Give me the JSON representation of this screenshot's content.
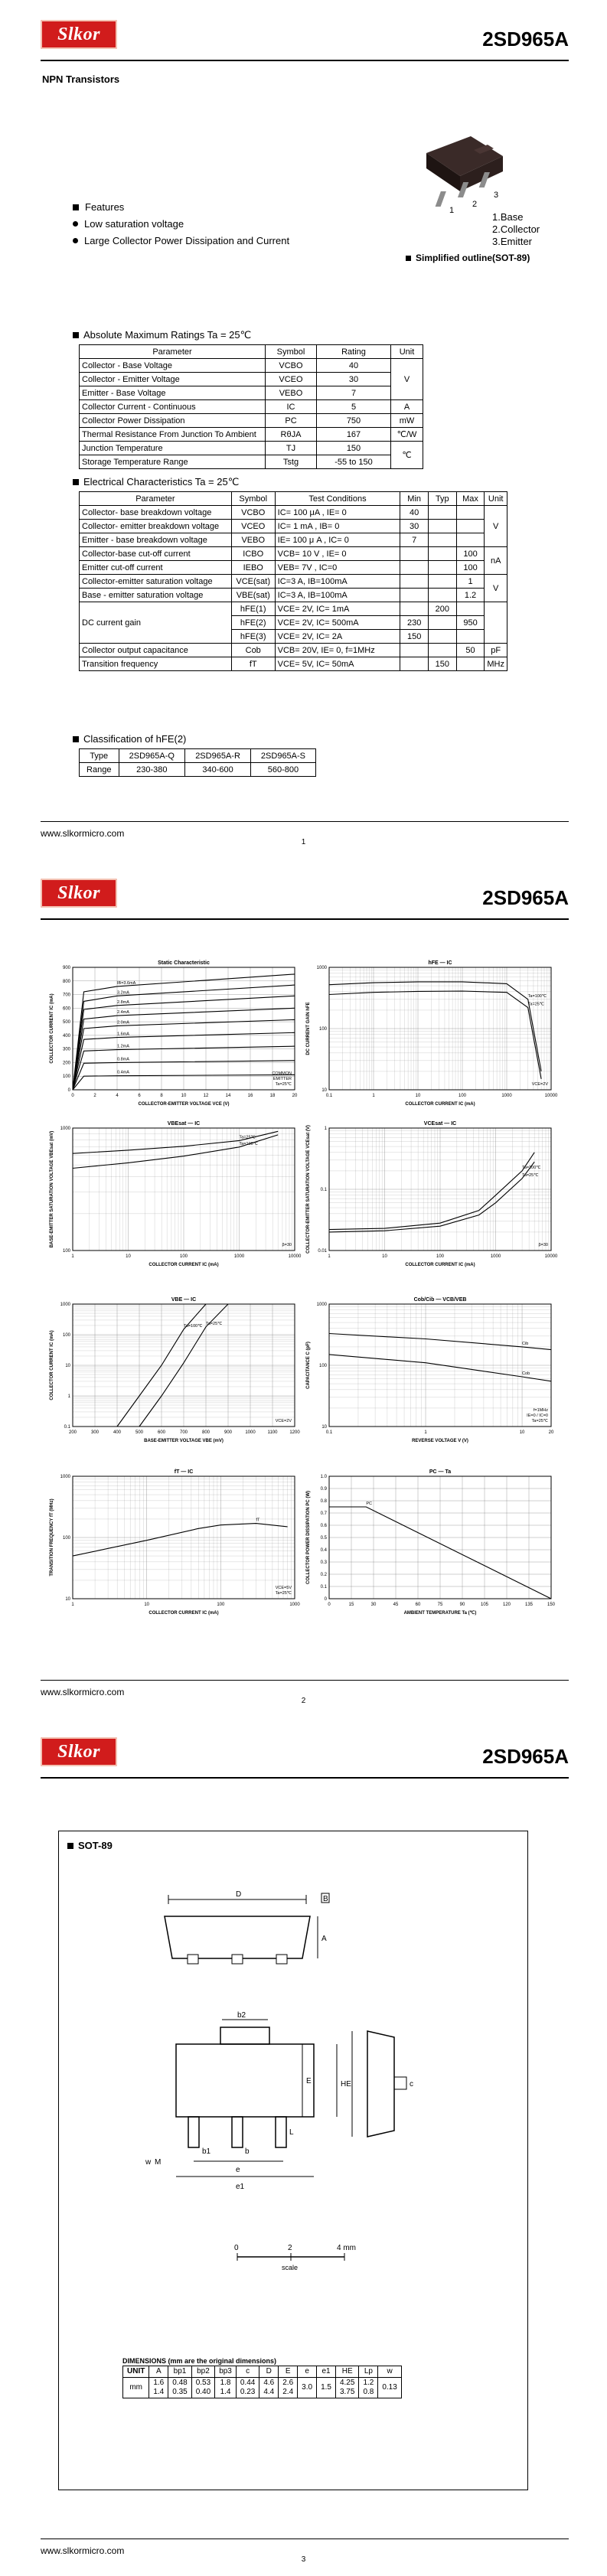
{
  "header": {
    "logo_text": "Slkor",
    "part_number": "2SD965A"
  },
  "footer": {
    "url": "www.slkormicro.com",
    "page_numbers": [
      "1",
      "2",
      "3"
    ]
  },
  "page1": {
    "subtitle": "NPN Transistors",
    "features": {
      "title": "Features",
      "items": [
        "Low saturation voltage",
        "Large Collector Power Dissipation and Current"
      ]
    },
    "pin_config": [
      "1.Base",
      "2.Collector",
      "3.Emitter"
    ],
    "pin_numbers": [
      "1",
      "2",
      "3"
    ],
    "outline_label": "Simplified outline(SOT-89)",
    "abs_max": {
      "title": "Absolute Maximum Ratings Ta = 25℃",
      "headers": [
        "Parameter",
        "Symbol",
        "Rating",
        "Unit"
      ],
      "rows": [
        [
          "Collector - Base Voltage",
          "VCBO",
          "40",
          "V"
        ],
        [
          "Collector - Emitter Voltage",
          "VCEO",
          "30",
          ""
        ],
        [
          "Emitter - Base Voltage",
          "VEBO",
          "7",
          ""
        ],
        [
          "Collector Current - Continuous",
          "IC",
          "5",
          "A"
        ],
        [
          "Collector Power Dissipation",
          "PC",
          "750",
          "mW"
        ],
        [
          "Thermal Resistance From Junction To Ambient",
          "RθJA",
          "167",
          "℃/W"
        ],
        [
          "Junction Temperature",
          "TJ",
          "150",
          "℃"
        ],
        [
          "Storage Temperature Range",
          "Tstg",
          "-55 to 150",
          ""
        ]
      ]
    },
    "elec": {
      "title": "Electrical Characteristics Ta = 25℃",
      "headers": [
        "Parameter",
        "Symbol",
        "Test Conditions",
        "Min",
        "Typ",
        "Max",
        "Unit"
      ],
      "rows": [
        [
          "Collector- base breakdown voltage",
          "VCBO",
          "IC= 100 μA , IE= 0",
          "40",
          "",
          "",
          "V"
        ],
        [
          "Collector- emitter breakdown voltage",
          "VCEO",
          "IC= 1 mA , IB= 0",
          "30",
          "",
          "",
          ""
        ],
        [
          "Emitter - base breakdown voltage",
          "VEBO",
          "IE= 100 μ A , IC= 0",
          "7",
          "",
          "",
          ""
        ],
        [
          "Collector-base cut-off current",
          "ICBO",
          "VCB= 10 V , IE= 0",
          "",
          "",
          "100",
          "nA"
        ],
        [
          "Emitter cut-off current",
          "IEBO",
          "VEB= 7V , IC=0",
          "",
          "",
          "100",
          ""
        ],
        [
          "Collector-emitter saturation voltage",
          "VCE(sat)",
          "IC=3 A, IB=100mA",
          "",
          "",
          "1",
          "V"
        ],
        [
          "Base - emitter saturation voltage",
          "VBE(sat)",
          "IC=3 A, IB=100mA",
          "",
          "",
          "1.2",
          ""
        ],
        [
          "DC current gain",
          "hFE(1)",
          "VCE= 2V, IC= 1mA",
          "",
          "200",
          "",
          ""
        ],
        [
          "",
          "hFE(2)",
          "VCE= 2V, IC= 500mA",
          "230",
          "",
          "950",
          ""
        ],
        [
          "",
          "hFE(3)",
          "VCE= 2V, IC= 2A",
          "150",
          "",
          "",
          ""
        ],
        [
          "Collector output capacitance",
          "Cob",
          "VCB= 20V, IE= 0, f=1MHz",
          "",
          "",
          "50",
          "pF"
        ],
        [
          "Transition frequency",
          "fT",
          "VCE= 5V, IC= 50mA",
          "",
          "150",
          "",
          "MHz"
        ]
      ]
    },
    "classification": {
      "title": "Classification of hFE(2)",
      "headers": [
        "Type",
        "2SD965A-Q",
        "2SD965A-R",
        "2SD965A-S"
      ],
      "row": [
        "Range",
        "230-380",
        "340-600",
        "560-800"
      ]
    }
  },
  "page2": {
    "chart_data": [
      {
        "type": "line",
        "title": "Static Characteristic",
        "xlabel": "COLLECTOR-EMITTER VOLTAGE  VCE  (V)",
        "ylabel": "COLLECTOR CURRENT  IC  (mA)",
        "annotation": [
          "COMMON",
          "EMITTER",
          "Ta=25℃"
        ],
        "xlim": [
          0,
          20
        ],
        "ylim": [
          0,
          900
        ],
        "x_ticks": [
          "0",
          "2",
          "4",
          "6",
          "8",
          "10",
          "12",
          "14",
          "16",
          "18",
          "20"
        ],
        "y_ticks": [
          "0",
          "100",
          "200",
          "300",
          "400",
          "500",
          "600",
          "700",
          "800",
          "900"
        ],
        "series": [
          {
            "name": "IB=3.6mA",
            "x": [
              0,
              1,
              4,
              20
            ],
            "values": [
              0,
              720,
              760,
              850
            ]
          },
          {
            "name": "3.2mA",
            "x": [
              0,
              1,
              4,
              20
            ],
            "values": [
              0,
              650,
              690,
              770
            ]
          },
          {
            "name": "2.8mA",
            "x": [
              0,
              1,
              4,
              20
            ],
            "values": [
              0,
              590,
              620,
              690
            ]
          },
          {
            "name": "2.4mA",
            "x": [
              0,
              1,
              4,
              20
            ],
            "values": [
              0,
              520,
              545,
              600
            ]
          },
          {
            "name": "2.0mA",
            "x": [
              0,
              1,
              4,
              20
            ],
            "values": [
              0,
              450,
              470,
              515
            ]
          },
          {
            "name": "1.6mA",
            "x": [
              0,
              1,
              4,
              20
            ],
            "values": [
              0,
              370,
              385,
              420
            ]
          },
          {
            "name": "1.2mA",
            "x": [
              0,
              1,
              4,
              20
            ],
            "values": [
              0,
              285,
              295,
              320
            ]
          },
          {
            "name": "0.8mA",
            "x": [
              0,
              1,
              4,
              20
            ],
            "values": [
              0,
              195,
              200,
              215
            ]
          },
          {
            "name": "0.4mA",
            "x": [
              0,
              1,
              4,
              20
            ],
            "values": [
              0,
              100,
              103,
              110
            ]
          }
        ]
      },
      {
        "type": "line",
        "title": "hFE — IC",
        "xlabel": "COLLECTOR CURRENT  IC  (mA)",
        "ylabel": "DC CURRENT GAIN  hFE",
        "x_scale": "log",
        "y_scale": "log",
        "xlim": [
          0.1,
          10000
        ],
        "ylim": [
          10,
          1000
        ],
        "note": "VCE=2V",
        "x_ticks": [
          "0.1",
          "1",
          "10",
          "100",
          "1000",
          "10000"
        ],
        "y_ticks": [
          "10",
          "100",
          "1000"
        ],
        "series": [
          {
            "name": "Ta=100℃",
            "x": [
              0.1,
              1,
              10,
              100,
              1000,
              3000,
              6000
            ],
            "values": [
              520,
              560,
              580,
              580,
              540,
              300,
              20
            ]
          },
          {
            "name": "Ta=25℃",
            "x": [
              0.1,
              1,
              10,
              100,
              1000,
              3000,
              6000
            ],
            "values": [
              360,
              390,
              405,
              410,
              390,
              220,
              15
            ]
          }
        ]
      },
      {
        "type": "line",
        "title": "VBEsat — IC",
        "xlabel": "COLLECTOR CURRENT  IC  (mA)",
        "ylabel": "BASE-EMITTER SATURATION VOLTAGE  VBEsat  (mV)",
        "x_scale": "log",
        "y_scale": "log",
        "xlim": [
          1,
          10000
        ],
        "ylim": [
          100,
          1000
        ],
        "note": "β=30",
        "x_ticks": [
          "1",
          "10",
          "100",
          "1000",
          "10000"
        ],
        "y_ticks": [
          "100",
          "1000"
        ],
        "series": [
          {
            "name": "Ta=25℃",
            "x": [
              1,
              10,
              100,
              1000,
              5000
            ],
            "values": [
              620,
              660,
              710,
              790,
              940
            ]
          },
          {
            "name": "Ta=100℃",
            "x": [
              1,
              10,
              100,
              1000,
              5000
            ],
            "values": [
              470,
              520,
              590,
              700,
              880
            ]
          }
        ]
      },
      {
        "type": "line",
        "title": "VCEsat — IC",
        "xlabel": "COLLECTOR CURRENT  IC  (mA)",
        "ylabel": "COLLECTOR-EMITTER SATURATION VOLTAGE  VCEsat  (V)",
        "x_scale": "log",
        "y_scale": "log",
        "xlim": [
          1,
          10000
        ],
        "ylim": [
          0.01,
          1
        ],
        "note": "β=30",
        "x_ticks": [
          "1",
          "10",
          "100",
          "1000",
          "10000"
        ],
        "y_ticks": [
          "0.01",
          "0.1",
          "1"
        ],
        "series": [
          {
            "name": "Ta=100℃",
            "x": [
              1,
              10,
              100,
              500,
              1000,
              3000,
              5000
            ],
            "values": [
              0.022,
              0.023,
              0.028,
              0.045,
              0.08,
              0.2,
              0.4
            ]
          },
          {
            "name": "Ta=25℃",
            "x": [
              1,
              10,
              100,
              500,
              1000,
              3000,
              5000
            ],
            "values": [
              0.02,
              0.021,
              0.025,
              0.038,
              0.06,
              0.15,
              0.28
            ]
          }
        ]
      },
      {
        "type": "line",
        "title": "VBE — IC",
        "xlabel": "BASE-EMITTER VOLTAGE  VBE  (mV)",
        "ylabel": "COLLECTOR CURRENT  IC  (mA)",
        "y_scale": "log",
        "xlim": [
          200,
          1200
        ],
        "ylim": [
          0.1,
          1000
        ],
        "note": "VCE=2V",
        "x_ticks": [
          "200",
          "300",
          "400",
          "500",
          "600",
          "700",
          "800",
          "900",
          "1000",
          "1100",
          "1200"
        ],
        "y_ticks": [
          "0.1",
          "1",
          "10",
          "100",
          "1000"
        ],
        "series": [
          {
            "name": "Ta=100℃",
            "x": [
              400,
              500,
              600,
              700,
              800
            ],
            "values": [
              0.1,
              1,
              10,
              150,
              1000
            ]
          },
          {
            "name": "Ta=25℃",
            "x": [
              500,
              600,
              700,
              800,
              900
            ],
            "values": [
              0.1,
              1,
              12,
              180,
              1000
            ]
          }
        ]
      },
      {
        "type": "line",
        "title": "Cob/Cib — VCB/VEB",
        "xlabel": "REVERSE VOLTAGE  V  (V)",
        "ylabel": "CAPACITANCE  C  (pF)",
        "x_scale": "log",
        "y_scale": "log",
        "xlim": [
          0.1,
          20
        ],
        "ylim": [
          10,
          1000
        ],
        "note": [
          "f=1MHz",
          "IE=0 / IC=0",
          "Ta=25℃"
        ],
        "x_ticks": [
          "0.1",
          "1",
          "10",
          "20"
        ],
        "y_ticks": [
          "10",
          "100",
          "1000"
        ],
        "series": [
          {
            "name": "Cib",
            "x": [
              0.1,
              1,
              10,
              20
            ],
            "values": [
              330,
              270,
              200,
              180
            ]
          },
          {
            "name": "Cob",
            "x": [
              0.1,
              1,
              10,
              20
            ],
            "values": [
              150,
              110,
              65,
              55
            ]
          }
        ]
      },
      {
        "type": "line",
        "title": "fT — IC",
        "xlabel": "COLLECTOR CURRENT  IC  (mA)",
        "ylabel": "TRANSITION FREQUENCY  fT  (MHz)",
        "x_scale": "log",
        "y_scale": "log",
        "xlim": [
          1,
          1000
        ],
        "ylim": [
          10,
          1000
        ],
        "note": [
          "VCE=5V",
          "Ta=25℃"
        ],
        "x_ticks": [
          "1",
          "10",
          "100",
          "1000"
        ],
        "y_ticks": [
          "10",
          "100",
          "1000"
        ],
        "series": [
          {
            "name": "fT",
            "x": [
              1,
              10,
              50,
              100,
              300,
              800
            ],
            "values": [
              50,
              90,
              140,
              160,
              170,
              150
            ]
          }
        ]
      },
      {
        "type": "line",
        "title": "PC — Ta",
        "xlabel": "AMBIENT TEMPERATURE  Ta  (℃)",
        "ylabel": "COLLECTOR POWER DISSIPATION  PC  (W)",
        "xlim": [
          0,
          150
        ],
        "ylim": [
          0,
          1.0
        ],
        "x_ticks": [
          "0",
          "15",
          "30",
          "45",
          "60",
          "75",
          "90",
          "105",
          "120",
          "135",
          "150"
        ],
        "y_ticks": [
          "0",
          "0.1",
          "0.2",
          "0.3",
          "0.4",
          "0.5",
          "0.6",
          "0.7",
          "0.8",
          "0.9",
          "1.0"
        ],
        "series": [
          {
            "name": "PC",
            "x": [
              0,
              25,
              150
            ],
            "values": [
              0.75,
              0.75,
              0
            ]
          }
        ]
      }
    ]
  },
  "page3": {
    "title": "SOT-89",
    "letter_labels": [
      "D",
      "B",
      "A",
      "b2",
      "E",
      "L",
      "c",
      "HE",
      "b1",
      "b",
      "e",
      "e1",
      "w",
      "M"
    ],
    "scale_labels": [
      "0",
      "2",
      "4 mm"
    ],
    "scale_word": "scale",
    "dims_title": "DIMENSIONS (mm are the original dimensions)",
    "dims_headers": [
      "UNIT",
      "A",
      "bp1",
      "bp2",
      "bp3",
      "c",
      "D",
      "E",
      "e",
      "e1",
      "HE",
      "Lp",
      "w"
    ],
    "dims_unit": "mm",
    "dims_max": [
      "1.6",
      "0.48",
      "0.53",
      "1.8",
      "0.44",
      "4.6",
      "2.6",
      "3.0",
      "1.5",
      "4.25",
      "1.2",
      "0.13"
    ],
    "dims_min": [
      "1.4",
      "0.35",
      "0.40",
      "1.4",
      "0.23",
      "4.4",
      "2.4",
      "",
      "",
      "3.75",
      "0.8",
      ""
    ]
  }
}
